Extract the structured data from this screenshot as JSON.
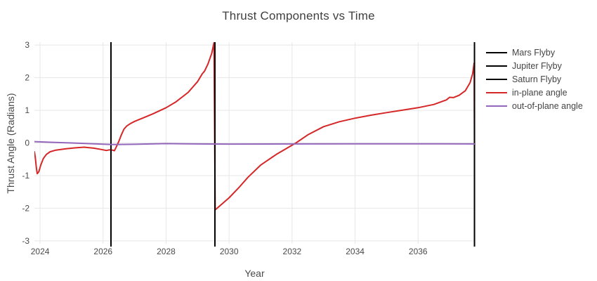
{
  "figure_title": "Thrust Components vs Time",
  "chart_data": {
    "type": "line",
    "title": "Thrust Components vs Time",
    "xlabel": "Year",
    "ylabel": "Thrust Angle (Radians)",
    "xlim": [
      2023.82,
      2037.8
    ],
    "ylim": [
      -3.09,
      3.09
    ],
    "x_ticks": [
      2024,
      2026,
      2028,
      2030,
      2032,
      2034,
      2036
    ],
    "y_ticks": [
      -3,
      -2,
      -1,
      0,
      1,
      2,
      3
    ],
    "grid": true,
    "grid_color": "#e7e7e7",
    "background_color": "#ffffff",
    "legend_position": "right",
    "vlines": [
      {
        "name": "Mars Flyby",
        "x": 2026.25,
        "color": "#000000",
        "width": 2
      },
      {
        "name": "Jupiter Flyby",
        "x": 2029.55,
        "color": "#000000",
        "width": 2
      },
      {
        "name": "Saturn Flyby",
        "x": 2037.79,
        "color": "#000000",
        "width": 2
      }
    ],
    "series": [
      {
        "name": "in-plane angle",
        "color": "#d62728",
        "width": 2,
        "points": [
          [
            2023.82,
            -0.27
          ],
          [
            2023.85,
            -0.45
          ],
          [
            2023.88,
            -0.75
          ],
          [
            2023.91,
            -0.94
          ],
          [
            2023.96,
            -0.88
          ],
          [
            2024.02,
            -0.68
          ],
          [
            2024.1,
            -0.48
          ],
          [
            2024.2,
            -0.35
          ],
          [
            2024.32,
            -0.27
          ],
          [
            2024.5,
            -0.22
          ],
          [
            2024.8,
            -0.18
          ],
          [
            2025.1,
            -0.15
          ],
          [
            2025.4,
            -0.13
          ],
          [
            2025.7,
            -0.16
          ],
          [
            2025.95,
            -0.2
          ],
          [
            2026.1,
            -0.23
          ],
          [
            2026.2,
            -0.21
          ],
          [
            2026.3,
            -0.22
          ],
          [
            2026.36,
            -0.24
          ],
          [
            2026.42,
            -0.12
          ],
          [
            2026.5,
            0.05
          ],
          [
            2026.58,
            0.25
          ],
          [
            2026.66,
            0.42
          ],
          [
            2026.75,
            0.52
          ],
          [
            2026.88,
            0.6
          ],
          [
            2027.0,
            0.66
          ],
          [
            2027.3,
            0.78
          ],
          [
            2027.6,
            0.9
          ],
          [
            2028.0,
            1.08
          ],
          [
            2028.3,
            1.25
          ],
          [
            2028.7,
            1.55
          ],
          [
            2029.0,
            1.88
          ],
          [
            2029.15,
            2.12
          ],
          [
            2029.22,
            2.2
          ],
          [
            2029.33,
            2.42
          ],
          [
            2029.45,
            2.75
          ],
          [
            2029.52,
            3.07
          ],
          [
            2029.56,
            -2.05
          ],
          [
            2029.8,
            -1.85
          ],
          [
            2030.0,
            -1.68
          ],
          [
            2030.3,
            -1.38
          ],
          [
            2030.6,
            -1.05
          ],
          [
            2031.0,
            -0.68
          ],
          [
            2031.5,
            -0.35
          ],
          [
            2032.12,
            0.0
          ],
          [
            2032.5,
            0.25
          ],
          [
            2033.0,
            0.5
          ],
          [
            2033.5,
            0.65
          ],
          [
            2034.0,
            0.76
          ],
          [
            2034.5,
            0.85
          ],
          [
            2035.0,
            0.93
          ],
          [
            2035.6,
            1.02
          ],
          [
            2036.0,
            1.08
          ],
          [
            2036.5,
            1.18
          ],
          [
            2036.9,
            1.32
          ],
          [
            2037.0,
            1.4
          ],
          [
            2037.12,
            1.39
          ],
          [
            2037.3,
            1.46
          ],
          [
            2037.5,
            1.6
          ],
          [
            2037.65,
            1.85
          ],
          [
            2037.73,
            2.12
          ],
          [
            2037.78,
            2.45
          ],
          [
            2037.8,
            -3.09
          ]
        ]
      },
      {
        "name": "out-of-plane angle",
        "color": "#9467bd",
        "width": 2,
        "points": [
          [
            2023.82,
            0.04
          ],
          [
            2024.4,
            0.02
          ],
          [
            2025.0,
            0.0
          ],
          [
            2025.8,
            -0.03
          ],
          [
            2026.3,
            -0.05
          ],
          [
            2027.0,
            -0.04
          ],
          [
            2028.0,
            -0.02
          ],
          [
            2029.0,
            -0.03
          ],
          [
            2030.0,
            -0.035
          ],
          [
            2032.0,
            -0.03
          ],
          [
            2034.0,
            -0.025
          ],
          [
            2036.0,
            -0.025
          ],
          [
            2037.8,
            -0.03
          ]
        ]
      }
    ],
    "legend": [
      {
        "label": "Mars Flyby",
        "color": "#000000"
      },
      {
        "label": "Jupiter Flyby",
        "color": "#000000"
      },
      {
        "label": "Saturn Flyby",
        "color": "#000000"
      },
      {
        "label": "in-plane angle",
        "color": "#d62728"
      },
      {
        "label": "out-of-plane angle",
        "color": "#9467bd"
      }
    ]
  }
}
